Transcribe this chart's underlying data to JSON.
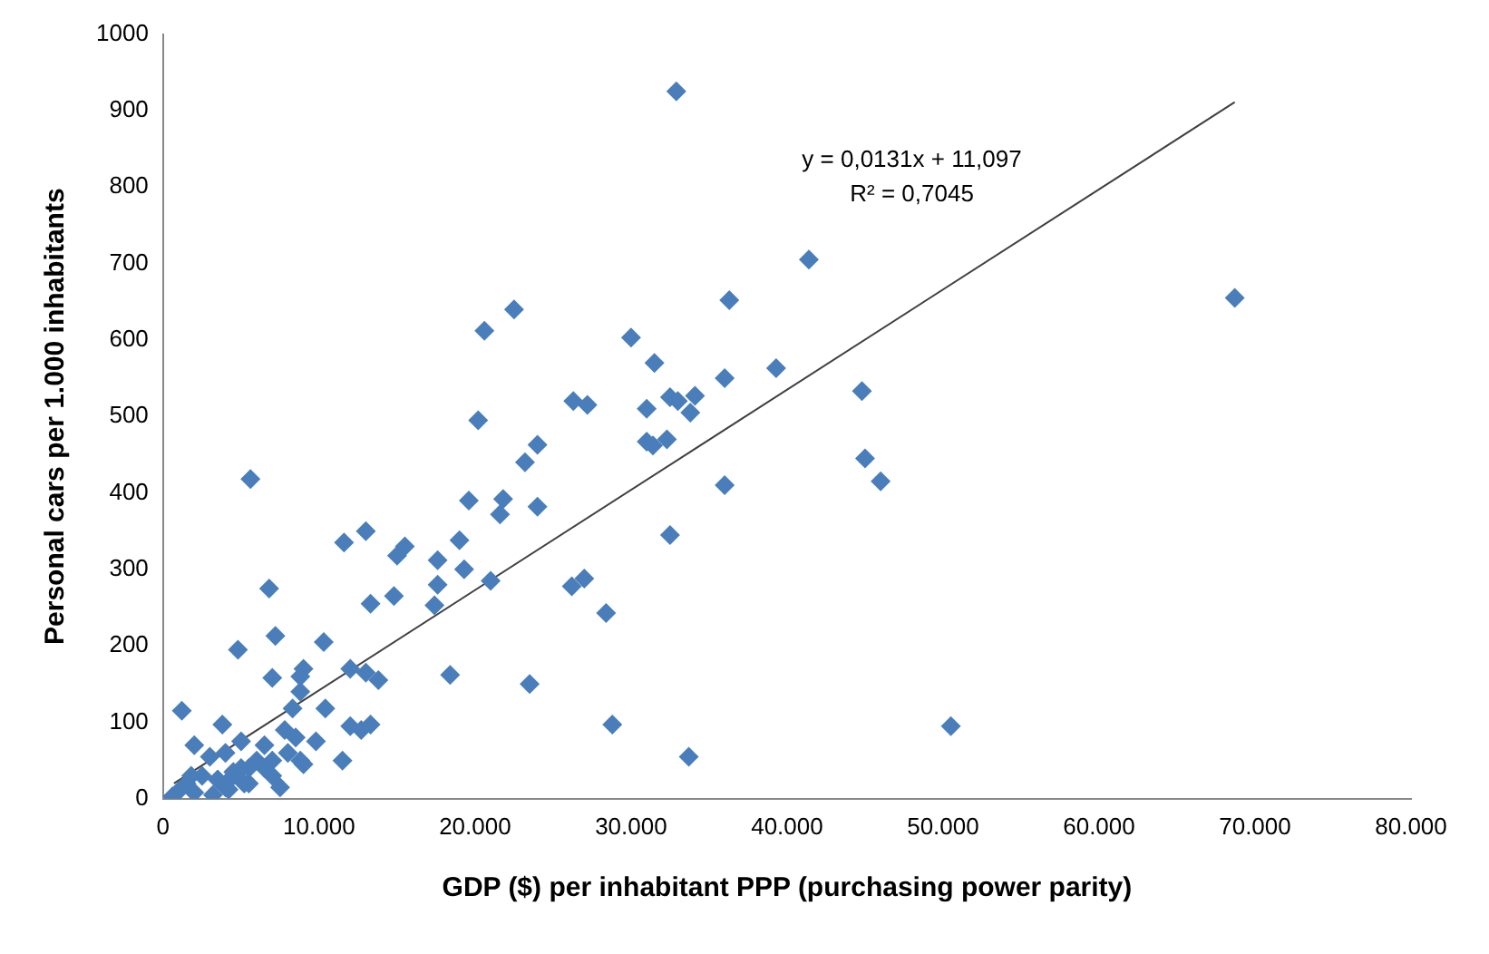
{
  "chart_data": {
    "type": "scatter",
    "xlabel": "GDP ($) per inhabitant PPP (purchasing power parity)",
    "ylabel": "Personal cars per 1.000 inhabitants",
    "xlim": [
      0,
      80000
    ],
    "ylim": [
      0,
      1000
    ],
    "xticks": [
      {
        "value": 0,
        "label": "0"
      },
      {
        "value": 10000,
        "label": "10.000"
      },
      {
        "value": 20000,
        "label": "20.000"
      },
      {
        "value": 30000,
        "label": "30.000"
      },
      {
        "value": 40000,
        "label": "40.000"
      },
      {
        "value": 50000,
        "label": "50.000"
      },
      {
        "value": 60000,
        "label": "60.000"
      },
      {
        "value": 70000,
        "label": "70.000"
      },
      {
        "value": 80000,
        "label": "80.000"
      }
    ],
    "yticks": [
      0,
      100,
      200,
      300,
      400,
      500,
      600,
      700,
      800,
      900,
      1000
    ],
    "grid": false,
    "legend": false,
    "marker": "diamond",
    "annotations": [
      "y = 0,0131x + 11,097",
      "R² = 0,7045"
    ],
    "series": [
      {
        "color": "#4a7ebb",
        "x": [
          32900,
          68700,
          41400,
          36300,
          20600,
          22500,
          30000,
          31500,
          39300,
          44800,
          36000,
          26300,
          27200,
          20200,
          31000,
          32500,
          33000,
          34100,
          33800,
          32300,
          31400,
          31000,
          24000,
          23200,
          45000,
          46000,
          36000,
          21800,
          21600,
          24000,
          19600,
          5600,
          32500,
          27000,
          26200,
          28400,
          21000,
          19000,
          17600,
          17600,
          17400,
          19300,
          15500,
          15000,
          14800,
          13000,
          11600,
          13300,
          6800,
          4800,
          7200,
          10300,
          18400,
          23500,
          12000,
          13000,
          13800,
          9000,
          8800,
          7000,
          28800,
          33700,
          50500,
          12000,
          13300,
          12700,
          10400,
          8300,
          7800,
          8800,
          9800,
          11500,
          8800,
          1200,
          3800,
          6500,
          5000,
          2000,
          1500,
          1000,
          2000,
          3500,
          4000,
          4500,
          5500,
          7000,
          7500,
          8000,
          9000,
          3000,
          4000,
          5000,
          6000,
          2500,
          3500,
          4500,
          5500,
          6500,
          1800,
          3200,
          600,
          7000,
          8500,
          5200,
          4200
        ],
        "values": [
          925,
          655,
          705,
          652,
          612,
          640,
          603,
          570,
          563,
          533,
          550,
          520,
          515,
          495,
          510,
          525,
          520,
          527,
          505,
          470,
          462,
          467,
          463,
          440,
          445,
          415,
          410,
          392,
          372,
          382,
          390,
          418,
          345,
          288,
          278,
          243,
          285,
          338,
          312,
          280,
          253,
          300,
          330,
          318,
          265,
          350,
          335,
          255,
          275,
          195,
          213,
          205,
          162,
          150,
          170,
          165,
          155,
          170,
          160,
          158,
          97,
          55,
          95,
          95,
          97,
          90,
          118,
          118,
          90,
          140,
          75,
          50,
          50,
          115,
          97,
          70,
          75,
          70,
          20,
          10,
          8,
          25,
          15,
          30,
          40,
          50,
          15,
          60,
          45,
          55,
          60,
          40,
          50,
          30,
          25,
          35,
          20,
          40,
          30,
          5,
          3,
          30,
          80,
          20,
          12
        ]
      },
      {
        "type": "line",
        "color": "#404040",
        "x": [
          700,
          68700
        ],
        "values": [
          20,
          911
        ],
        "marker": "none"
      }
    ]
  }
}
